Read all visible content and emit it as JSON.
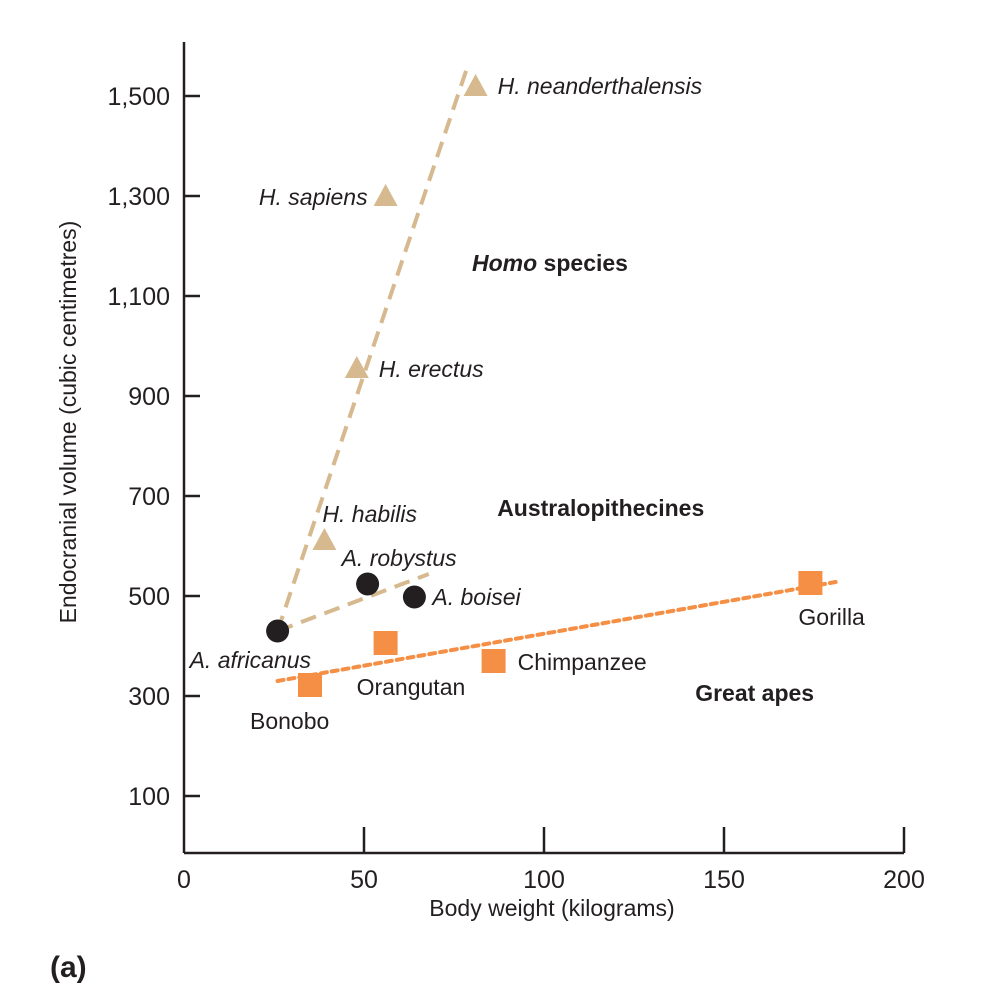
{
  "chart_data": {
    "type": "scatter",
    "title": "",
    "panel_label": "(a)",
    "xlabel": "Body weight (kilograms)",
    "ylabel": "Endocranial volume (cubic centimetres)",
    "xlim": [
      0,
      200
    ],
    "ylim": [
      50,
      1600
    ],
    "x_ticks": [
      0,
      50,
      100,
      150,
      200
    ],
    "x_tick_labels": [
      "0",
      "50",
      "100",
      "150",
      "200"
    ],
    "y_ticks": [
      100,
      300,
      500,
      700,
      900,
      1100,
      1300,
      1500
    ],
    "y_tick_labels": [
      "100",
      "300",
      "500",
      "700",
      "900",
      "1,100",
      "1,300",
      "1,500"
    ],
    "grid": false,
    "colors": {
      "homo": "#d6b98f",
      "australopithecines": "#231f20",
      "great_apes": "#f58f45",
      "axis": "#231f20"
    },
    "series": [
      {
        "name": "Homo species",
        "marker": "triangle",
        "color_key": "homo",
        "label_style": "italic",
        "points": [
          {
            "label": "H. habilis",
            "x": 39,
            "y": 612
          },
          {
            "label": "H. erectus",
            "x": 48,
            "y": 956
          },
          {
            "label": "H. sapiens",
            "x": 56,
            "y": 1300
          },
          {
            "label": "H. neanderthalensis",
            "x": 81,
            "y": 1520
          }
        ],
        "trend": {
          "style": "dashed",
          "from": [
            26,
            430
          ],
          "to": [
            79,
            1564
          ]
        }
      },
      {
        "name": "Australopithecines",
        "marker": "circle",
        "color_key": "australopithecines",
        "label_style": "italic",
        "points": [
          {
            "label": "A. africanus",
            "x": 26,
            "y": 430
          },
          {
            "label": "A. robystus",
            "x": 51,
            "y": 524
          },
          {
            "label": "A. boisei",
            "x": 64,
            "y": 498
          }
        ],
        "trend": {
          "style": "dashed",
          "trend_color_key": "homo",
          "from": [
            26,
            430
          ],
          "to": [
            68,
            544
          ]
        }
      },
      {
        "name": "Great apes",
        "marker": "square",
        "color_key": "great_apes",
        "label_style": "normal",
        "points": [
          {
            "label": "Bonobo",
            "x": 35,
            "y": 322
          },
          {
            "label": "Orangutan",
            "x": 56,
            "y": 406
          },
          {
            "label": "Chimpanzee",
            "x": 86,
            "y": 370
          },
          {
            "label": "Gorilla",
            "x": 174,
            "y": 526
          }
        ],
        "trend": {
          "style": "dotted",
          "from": [
            26,
            330
          ],
          "to": [
            181,
            528
          ]
        }
      }
    ],
    "annotations": [
      {
        "text_bold_italic": "Homo",
        "text_bold": " species",
        "x": 80,
        "y": 1150
      },
      {
        "text_bold": "Australopithecines",
        "x": 87,
        "y": 660
      },
      {
        "text_bold": "Great apes",
        "x": 142,
        "y": 290
      }
    ]
  }
}
